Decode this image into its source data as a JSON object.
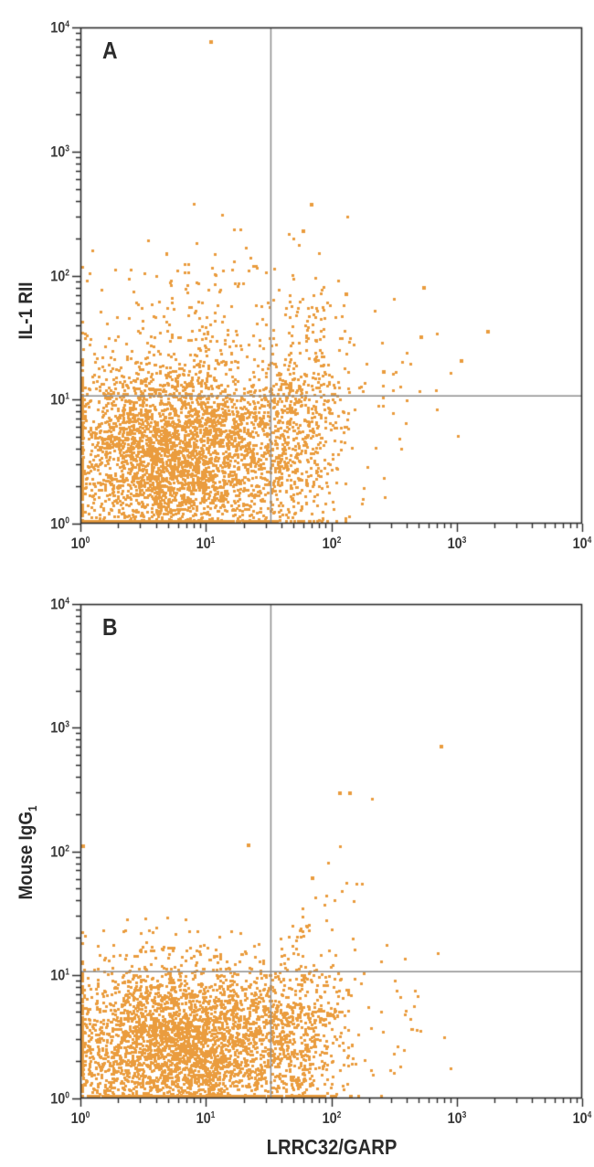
{
  "figure": {
    "xlabel": "LRRC32/GARP",
    "point_color": "#EA9C3E",
    "axis_color": "#2b2b2b",
    "gate_color": "#8c8c8c",
    "tick_base": "10"
  },
  "chart_data": [
    {
      "type": "scatter",
      "panel_label": "A",
      "ylabel": {
        "text": "IL-1 RII",
        "sub": ""
      },
      "xlabel": "LRRC32/GARP",
      "log_scale": true,
      "xlim": [
        1,
        10000
      ],
      "ylim": [
        1,
        10000
      ],
      "x_tick_exponents": [
        0,
        1,
        2,
        3,
        4
      ],
      "y_tick_exponents": [
        0,
        1,
        2,
        3,
        4
      ],
      "quadrant_gate": {
        "x": 33,
        "y": 10.7
      },
      "legend": "none",
      "grid": false,
      "seed": 1337,
      "point_size": 3,
      "clusters": [
        {
          "name": "double-negative-main",
          "n": 3600,
          "mx": 0.78,
          "sx": 0.46,
          "my": 0.55,
          "sy": 0.4,
          "rho": 0
        },
        {
          "name": "il1rii-upper-scatter",
          "n": 140,
          "mx": 0.95,
          "sx": 0.5,
          "my": 1.72,
          "sy": 0.32,
          "rho": 0
        },
        {
          "name": "garp-positive",
          "n": 550,
          "mx": 1.72,
          "sx": 0.2,
          "my": 0.85,
          "sy": 0.45,
          "rho": 0.15
        },
        {
          "name": "far-right-sparse",
          "n": 45,
          "mx": 2.35,
          "sx": 0.35,
          "my": 1.05,
          "sy": 0.32,
          "rho": 0
        }
      ],
      "outliers_log10": [
        [
          1.04,
          3.88
        ],
        [
          1.84,
          2.57
        ],
        [
          1.78,
          2.36
        ],
        [
          2.12,
          1.85
        ],
        [
          2.72,
          1.5
        ],
        [
          3.25,
          1.55
        ],
        [
          3.04,
          1.31
        ],
        [
          2.42,
          1.22
        ],
        [
          2.74,
          1.9
        ]
      ]
    },
    {
      "type": "scatter",
      "panel_label": "B",
      "ylabel": {
        "text": "Mouse IgG",
        "sub": "1"
      },
      "xlabel": "LRRC32/GARP",
      "log_scale": true,
      "xlim": [
        1,
        10000
      ],
      "ylim": [
        1,
        10000
      ],
      "x_tick_exponents": [
        0,
        1,
        2,
        3,
        4
      ],
      "y_tick_exponents": [
        0,
        1,
        2,
        3,
        4
      ],
      "quadrant_gate": {
        "x": 33,
        "y": 10.6
      },
      "legend": "none",
      "grid": false,
      "seed": 9042,
      "point_size": 3,
      "clusters": [
        {
          "name": "isotype-main",
          "n": 3400,
          "mx": 0.8,
          "sx": 0.46,
          "my": 0.42,
          "sy": 0.34,
          "rho": 0
        },
        {
          "name": "right-population",
          "n": 500,
          "mx": 1.72,
          "sx": 0.2,
          "my": 0.5,
          "sy": 0.35,
          "rho": 0.1
        },
        {
          "name": "diagonal-trail",
          "n": 55,
          "mx": 1.72,
          "sx": 0.28,
          "my": 1.15,
          "sy": 0.42,
          "rho": 0.75
        },
        {
          "name": "far-right-sparse",
          "n": 30,
          "mx": 2.45,
          "sx": 0.3,
          "my": 0.6,
          "sy": 0.33,
          "rho": 0
        }
      ],
      "outliers_log10": [
        [
          2.88,
          2.85
        ],
        [
          2.07,
          2.47
        ],
        [
          2.15,
          2.47
        ],
        [
          1.34,
          2.05
        ],
        [
          0.02,
          2.04
        ],
        [
          1.85,
          1.78
        ]
      ]
    }
  ]
}
